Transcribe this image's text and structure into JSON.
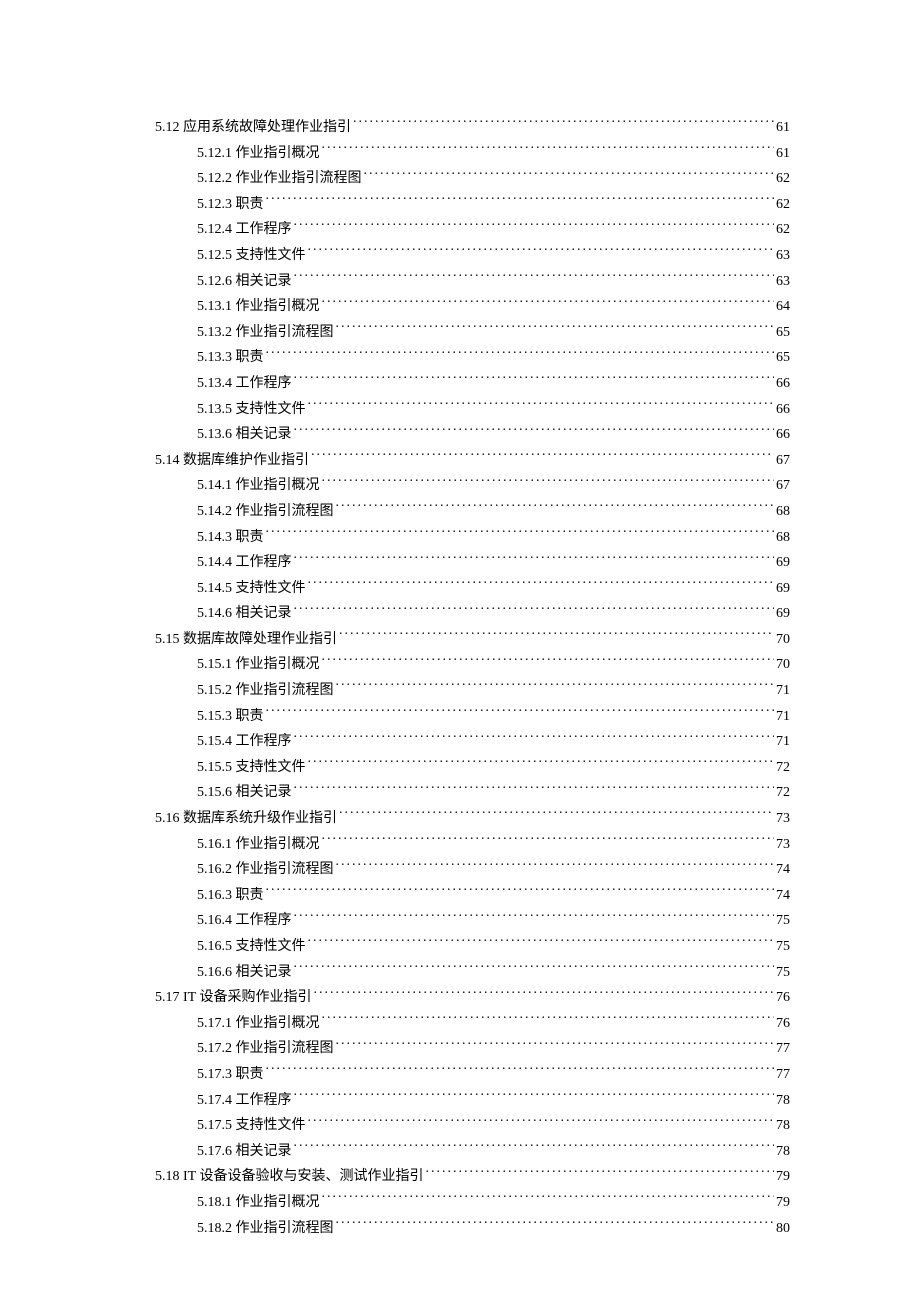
{
  "entries": [
    {
      "level": 1,
      "label": "5.12 应用系统故障处理作业指引",
      "page": "61"
    },
    {
      "level": 2,
      "label": "5.12.1 作业指引概况",
      "page": "61"
    },
    {
      "level": 2,
      "label": "5.12.2 作业作业指引流程图",
      "page": "62"
    },
    {
      "level": 2,
      "label": "5.12.3 职责",
      "page": "62"
    },
    {
      "level": 2,
      "label": "5.12.4 工作程序",
      "page": "62"
    },
    {
      "level": 2,
      "label": "5.12.5 支持性文件",
      "page": "63"
    },
    {
      "level": 2,
      "label": "5.12.6 相关记录",
      "page": "63"
    },
    {
      "level": 2,
      "label": "5.13.1 作业指引概况",
      "page": "64"
    },
    {
      "level": 2,
      "label": "5.13.2 作业指引流程图",
      "page": "65"
    },
    {
      "level": 2,
      "label": "5.13.3 职责",
      "page": "65"
    },
    {
      "level": 2,
      "label": "5.13.4 工作程序",
      "page": "66"
    },
    {
      "level": 2,
      "label": "5.13.5 支持性文件",
      "page": "66"
    },
    {
      "level": 2,
      "label": "5.13.6 相关记录",
      "page": "66"
    },
    {
      "level": 1,
      "label": "5.14 数据库维护作业指引",
      "page": "67"
    },
    {
      "level": 2,
      "label": "5.14.1 作业指引概况",
      "page": "67"
    },
    {
      "level": 2,
      "label": "5.14.2 作业指引流程图",
      "page": "68"
    },
    {
      "level": 2,
      "label": "5.14.3 职责",
      "page": "68"
    },
    {
      "level": 2,
      "label": "5.14.4 工作程序",
      "page": "69"
    },
    {
      "level": 2,
      "label": "5.14.5 支持性文件",
      "page": "69"
    },
    {
      "level": 2,
      "label": "5.14.6 相关记录",
      "page": "69"
    },
    {
      "level": 1,
      "label": "5.15 数据库故障处理作业指引",
      "page": "70"
    },
    {
      "level": 2,
      "label": "5.15.1 作业指引概况",
      "page": "70"
    },
    {
      "level": 2,
      "label": "5.15.2 作业指引流程图",
      "page": "71"
    },
    {
      "level": 2,
      "label": "5.15.3 职责",
      "page": "71"
    },
    {
      "level": 2,
      "label": "5.15.4 工作程序",
      "page": "71"
    },
    {
      "level": 2,
      "label": "5.15.5 支持性文件",
      "page": "72"
    },
    {
      "level": 2,
      "label": "5.15.6 相关记录",
      "page": "72"
    },
    {
      "level": 1,
      "label": "5.16 数据库系统升级作业指引",
      "page": "73"
    },
    {
      "level": 2,
      "label": "5.16.1 作业指引概况",
      "page": "73"
    },
    {
      "level": 2,
      "label": "5.16.2 作业指引流程图",
      "page": "74"
    },
    {
      "level": 2,
      "label": "5.16.3 职责",
      "page": "74"
    },
    {
      "level": 2,
      "label": "5.16.4 工作程序",
      "page": "75"
    },
    {
      "level": 2,
      "label": "5.16.5 支持性文件",
      "page": "75"
    },
    {
      "level": 2,
      "label": "5.16.6 相关记录",
      "page": "75"
    },
    {
      "level": 1,
      "label": "5.17 IT 设备采购作业指引",
      "page": "76"
    },
    {
      "level": 2,
      "label": "5.17.1 作业指引概况",
      "page": "76"
    },
    {
      "level": 2,
      "label": "5.17.2 作业指引流程图",
      "page": "77"
    },
    {
      "level": 2,
      "label": "5.17.3 职责",
      "page": "77"
    },
    {
      "level": 2,
      "label": "5.17.4 工作程序",
      "page": "78"
    },
    {
      "level": 2,
      "label": "5.17.5 支持性文件",
      "page": "78"
    },
    {
      "level": 2,
      "label": "5.17.6 相关记录",
      "page": "78"
    },
    {
      "level": 1,
      "label": "5.18 IT 设备设备验收与安装、测试作业指引",
      "page": "79"
    },
    {
      "level": 2,
      "label": "5.18.1 作业指引概况",
      "page": "79"
    },
    {
      "level": 2,
      "label": "5.18.2 作业指引流程图",
      "page": "80"
    }
  ]
}
